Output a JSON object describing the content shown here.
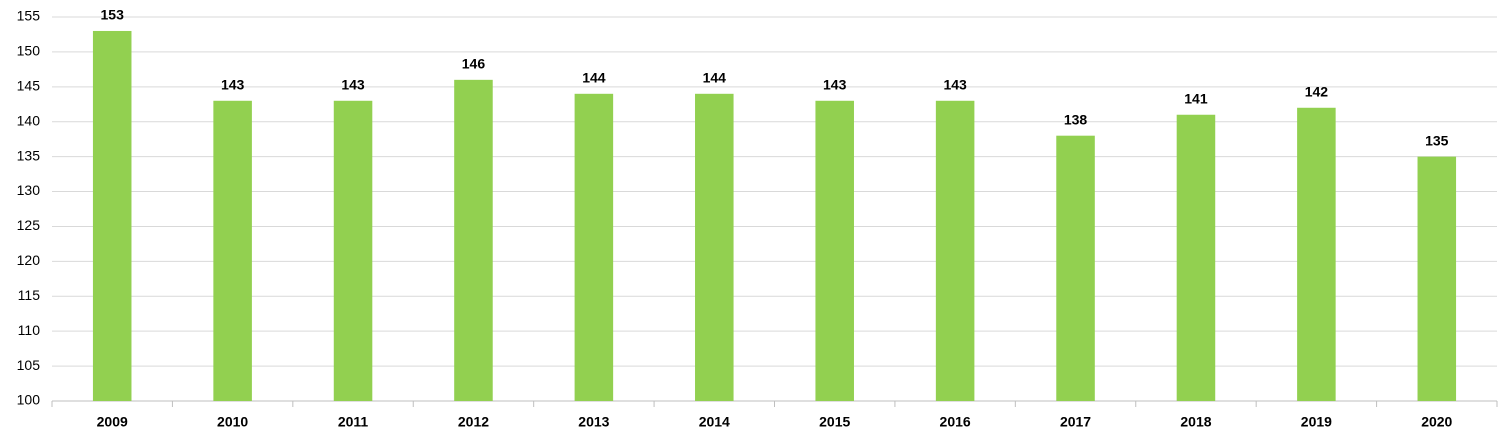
{
  "chart_data": {
    "type": "bar",
    "categories": [
      "2009",
      "2010",
      "2011",
      "2012",
      "2013",
      "2014",
      "2015",
      "2016",
      "2017",
      "2018",
      "2019",
      "2020"
    ],
    "values": [
      153,
      143,
      143,
      146,
      144,
      144,
      143,
      143,
      138,
      141,
      142,
      135
    ],
    "color": "#92d050",
    "ylim": [
      100,
      155
    ],
    "yticks": [
      100,
      105,
      110,
      115,
      120,
      125,
      130,
      135,
      140,
      145,
      150,
      155
    ],
    "grid": true
  }
}
